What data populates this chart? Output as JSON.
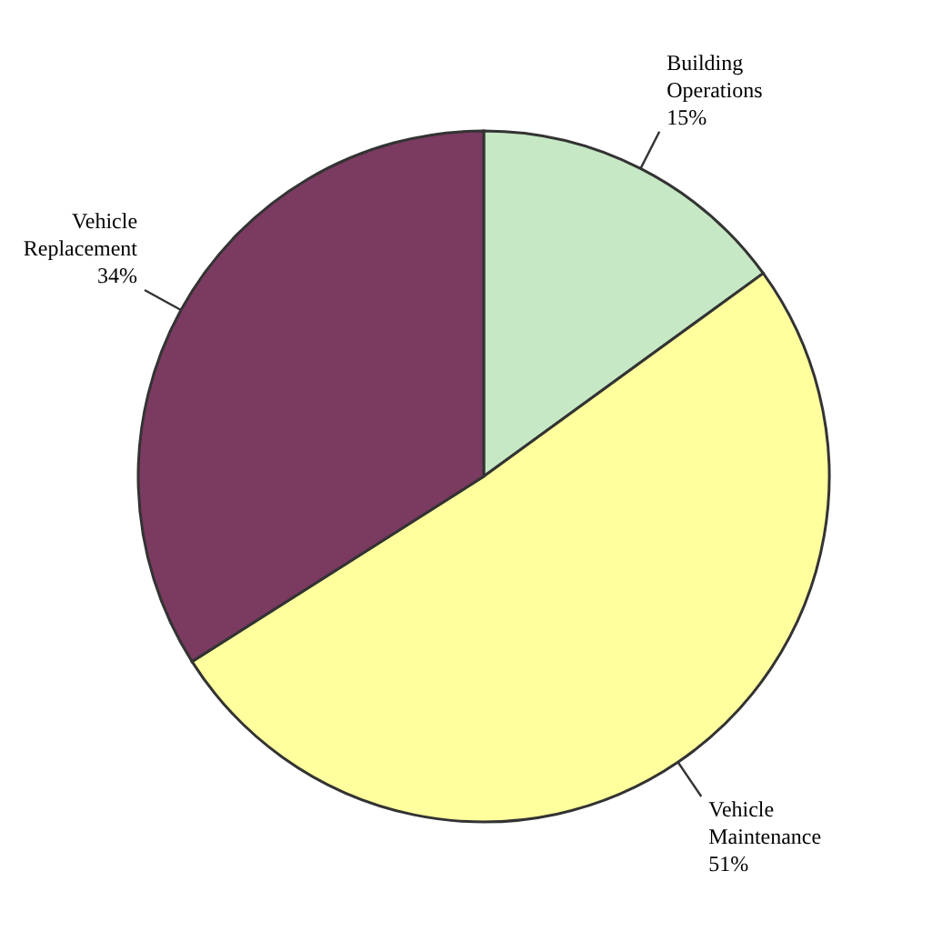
{
  "chart_data": {
    "type": "pie",
    "categories": [
      "Building Operations",
      "Vehicle Maintenance",
      "Vehicle Replacement"
    ],
    "values": [
      15,
      51,
      34
    ],
    "value_labels": [
      "15%",
      "51%",
      "34%"
    ],
    "colors": [
      "#c6e8c4",
      "#ffff9e",
      "#7b3a60"
    ]
  }
}
